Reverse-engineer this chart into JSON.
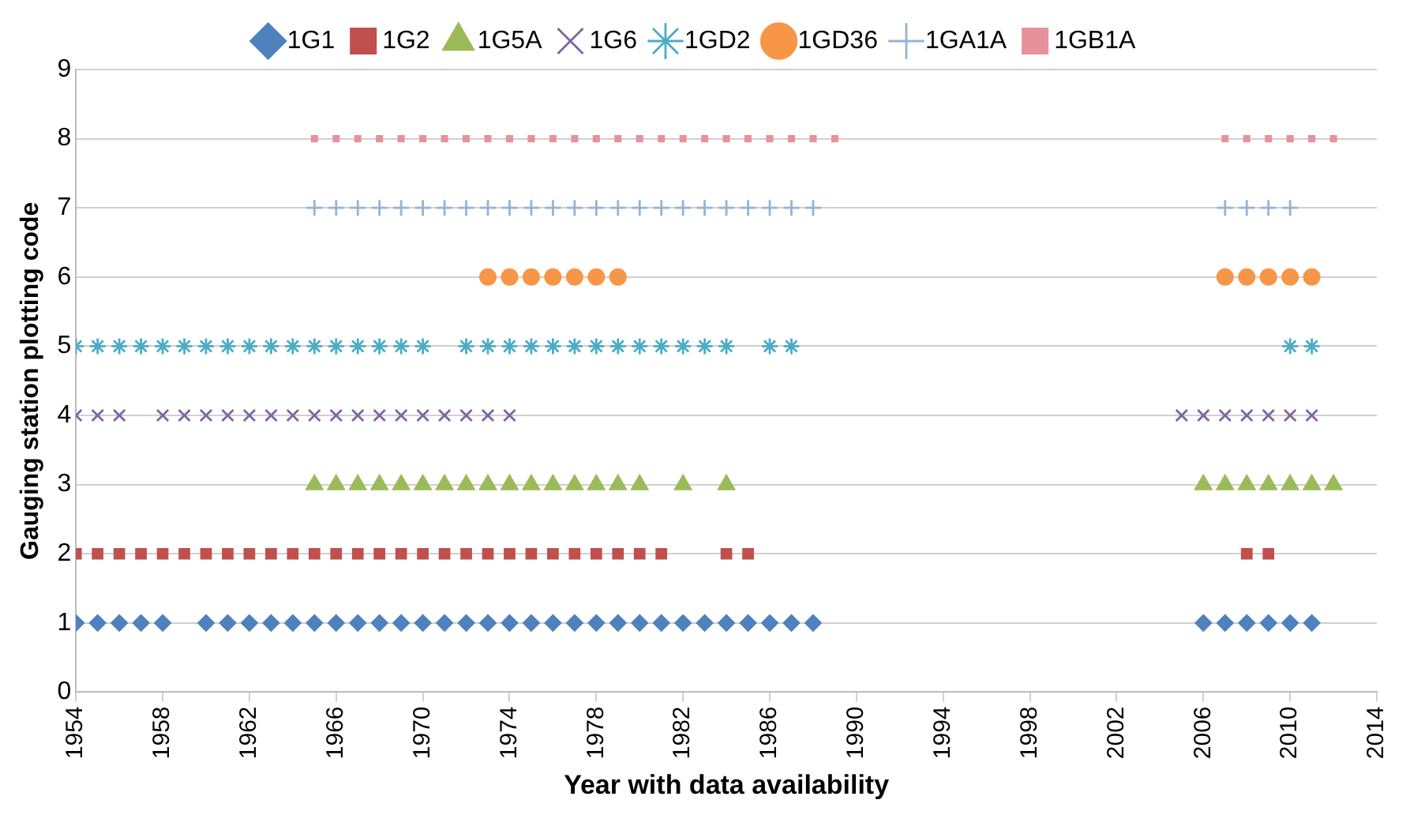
{
  "chart_data": {
    "type": "scatter",
    "xlabel": "Year with data availability",
    "ylabel": "Gauging station plotting code",
    "xlim": [
      1954,
      2014
    ],
    "xticks": [
      1954,
      1958,
      1962,
      1966,
      1970,
      1974,
      1978,
      1982,
      1986,
      1990,
      1994,
      1998,
      2002,
      2006,
      2010,
      2014
    ],
    "ylim": [
      0,
      9
    ],
    "yticks": [
      0,
      1,
      2,
      3,
      4,
      5,
      6,
      7,
      8,
      9
    ],
    "grid": "y",
    "legend": "top",
    "series": [
      {
        "name": "1G1",
        "color": "#4f81bd",
        "marker": "diamond",
        "x": [
          1954,
          1955,
          1956,
          1957,
          1958,
          1960,
          1961,
          1962,
          1963,
          1964,
          1965,
          1966,
          1967,
          1968,
          1969,
          1970,
          1971,
          1972,
          1973,
          1974,
          1975,
          1976,
          1977,
          1978,
          1979,
          1980,
          1981,
          1982,
          1983,
          1984,
          1985,
          1986,
          1987,
          1988,
          2006,
          2007,
          2008,
          2009,
          2010,
          2011
        ],
        "values": [
          1,
          1,
          1,
          1,
          1,
          1,
          1,
          1,
          1,
          1,
          1,
          1,
          1,
          1,
          1,
          1,
          1,
          1,
          1,
          1,
          1,
          1,
          1,
          1,
          1,
          1,
          1,
          1,
          1,
          1,
          1,
          1,
          1,
          1,
          1,
          1,
          1,
          1,
          1,
          1
        ]
      },
      {
        "name": "1G2",
        "color": "#c0504d",
        "marker": "square",
        "x": [
          1954,
          1955,
          1956,
          1957,
          1958,
          1959,
          1960,
          1961,
          1962,
          1963,
          1964,
          1965,
          1966,
          1967,
          1968,
          1969,
          1970,
          1971,
          1972,
          1973,
          1974,
          1975,
          1976,
          1977,
          1978,
          1979,
          1980,
          1981,
          1984,
          1985,
          2008,
          2009
        ],
        "values": [
          2,
          2,
          2,
          2,
          2,
          2,
          2,
          2,
          2,
          2,
          2,
          2,
          2,
          2,
          2,
          2,
          2,
          2,
          2,
          2,
          2,
          2,
          2,
          2,
          2,
          2,
          2,
          2,
          2,
          2,
          2,
          2
        ]
      },
      {
        "name": "1G5A",
        "color": "#9bbb59",
        "marker": "triangle",
        "x": [
          1965,
          1966,
          1967,
          1968,
          1969,
          1970,
          1971,
          1972,
          1973,
          1974,
          1975,
          1976,
          1977,
          1978,
          1979,
          1980,
          1982,
          1984,
          2006,
          2007,
          2008,
          2009,
          2010,
          2011,
          2012
        ],
        "values": [
          3,
          3,
          3,
          3,
          3,
          3,
          3,
          3,
          3,
          3,
          3,
          3,
          3,
          3,
          3,
          3,
          3,
          3,
          3,
          3,
          3,
          3,
          3,
          3,
          3
        ]
      },
      {
        "name": "1G6",
        "color": "#8064a2",
        "marker": "x",
        "x": [
          1954,
          1955,
          1956,
          1958,
          1959,
          1960,
          1961,
          1962,
          1963,
          1964,
          1965,
          1966,
          1967,
          1968,
          1969,
          1970,
          1971,
          1972,
          1973,
          1974,
          2005,
          2006,
          2007,
          2008,
          2009,
          2010,
          2011
        ],
        "values": [
          4,
          4,
          4,
          4,
          4,
          4,
          4,
          4,
          4,
          4,
          4,
          4,
          4,
          4,
          4,
          4,
          4,
          4,
          4,
          4,
          4,
          4,
          4,
          4,
          4,
          4,
          4
        ]
      },
      {
        "name": "1GD2",
        "color": "#4bacc6",
        "x": [
          1954,
          1955,
          1956,
          1957,
          1958,
          1959,
          1960,
          1961,
          1962,
          1963,
          1964,
          1965,
          1966,
          1967,
          1968,
          1969,
          1970,
          1972,
          1973,
          1974,
          1975,
          1976,
          1977,
          1978,
          1979,
          1980,
          1981,
          1982,
          1983,
          1984,
          1986,
          1987,
          2010,
          2011
        ],
        "values": [
          5,
          5,
          5,
          5,
          5,
          5,
          5,
          5,
          5,
          5,
          5,
          5,
          5,
          5,
          5,
          5,
          5,
          5,
          5,
          5,
          5,
          5,
          5,
          5,
          5,
          5,
          5,
          5,
          5,
          5,
          5,
          5,
          5,
          5
        ]
      },
      {
        "name": "1GD36",
        "color": "#f79646",
        "marker": "circle",
        "x": [
          1973,
          1974,
          1975,
          1976,
          1977,
          1978,
          1979,
          2007,
          2008,
          2009,
          2010,
          2011
        ],
        "values": [
          6,
          6,
          6,
          6,
          6,
          6,
          6,
          6,
          6,
          6,
          6,
          6
        ]
      },
      {
        "name": "1GA1A",
        "color": "#95b3d7",
        "marker": "cross",
        "x": [
          1965,
          1966,
          1967,
          1968,
          1969,
          1970,
          1971,
          1972,
          1973,
          1974,
          1975,
          1976,
          1977,
          1978,
          1979,
          1980,
          1981,
          1982,
          1983,
          1984,
          1985,
          1986,
          1987,
          1988,
          2007,
          2008,
          2009,
          2010
        ],
        "values": [
          7,
          7,
          7,
          7,
          7,
          7,
          7,
          7,
          7,
          7,
          7,
          7,
          7,
          7,
          7,
          7,
          7,
          7,
          7,
          7,
          7,
          7,
          7,
          7,
          7,
          7,
          7,
          7
        ]
      },
      {
        "name": "1GB1A",
        "color": "#e6929a",
        "marker": "square",
        "x": [
          1965,
          1966,
          1967,
          1968,
          1969,
          1970,
          1971,
          1972,
          1973,
          1974,
          1975,
          1976,
          1977,
          1978,
          1979,
          1980,
          1981,
          1982,
          1983,
          1984,
          1985,
          1986,
          1987,
          1988,
          1989,
          2007,
          2008,
          2009,
          2010,
          2011,
          2012
        ],
        "values": [
          8,
          8,
          8,
          8,
          8,
          8,
          8,
          8,
          8,
          8,
          8,
          8,
          8,
          8,
          8,
          8,
          8,
          8,
          8,
          8,
          8,
          8,
          8,
          8,
          8,
          8,
          8,
          8,
          8,
          8,
          8
        ]
      }
    ]
  }
}
